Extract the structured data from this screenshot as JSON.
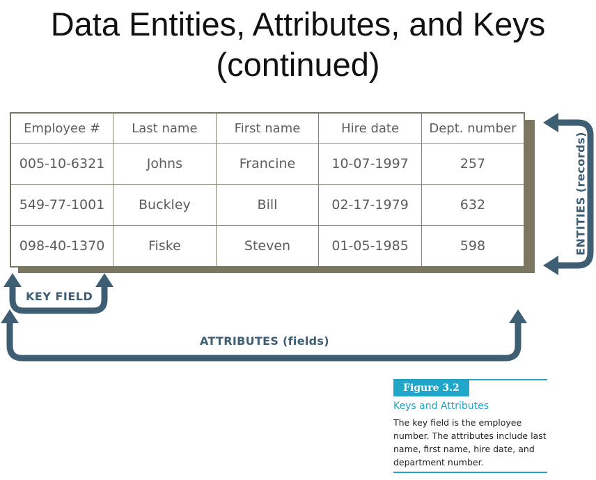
{
  "title": {
    "line1": "Data Entities, Attributes, and Keys",
    "line2": "(continued)"
  },
  "table": {
    "headers": [
      "Employee #",
      "Last name",
      "First name",
      "Hire date",
      "Dept. number"
    ],
    "rows": [
      [
        "005-10-6321",
        "Johns",
        "Francine",
        "10-07-1997",
        "257"
      ],
      [
        "549-77-1001",
        "Buckley",
        "Bill",
        "02-17-1979",
        "632"
      ],
      [
        "098-40-1370",
        "Fiske",
        "Steven",
        "01-05-1985",
        "598"
      ]
    ]
  },
  "labels": {
    "key_field": "KEY FIELD",
    "attributes": "ATTRIBUTES (fields)",
    "entities": "ENTITIES (records)"
  },
  "caption": {
    "figure": "Figure 3.2",
    "heading": "Keys and Attributes",
    "text": "The key field is the employee number. The attributes include last name, first name, hire date, and department number."
  },
  "colors": {
    "arrow": "#3d5e73",
    "table_shadow": "#7b7660",
    "accent": "#1fa6c8"
  }
}
